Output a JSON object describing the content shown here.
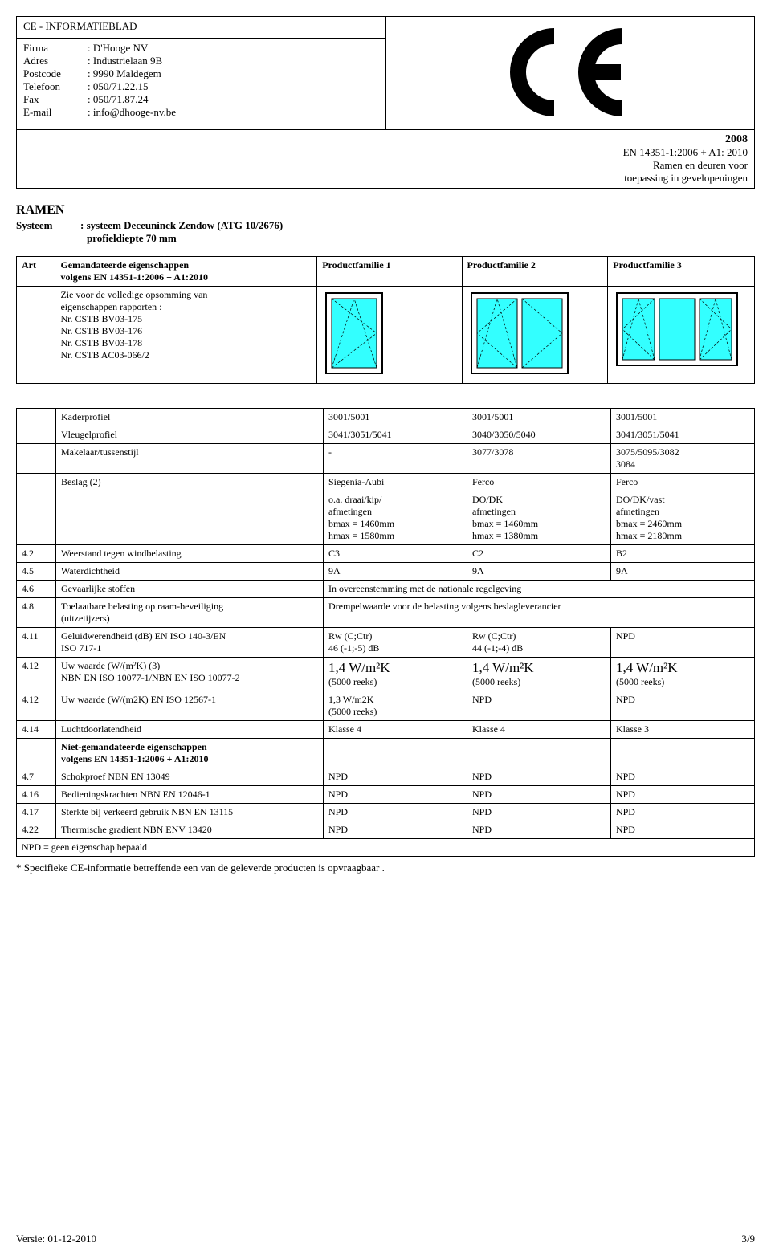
{
  "header": {
    "title": "CE - INFORMATIEBLAD",
    "firma_label": "Firma",
    "firma_value": ": D'Hooge NV",
    "adres_label": "Adres",
    "adres_value": ": Industrielaan 9B",
    "postcode_label": "Postcode",
    "postcode_value": ": 9990 Maldegem",
    "telefoon_label": "Telefoon",
    "telefoon_value": ": 050/71.22.15",
    "fax_label": "Fax",
    "fax_value": ": 050/71.87.24",
    "email_label": "E-mail",
    "email_value": ": info@dhooge-nv.be",
    "year": "2008",
    "norm_line1": "EN 14351-1:2006 + A1: 2010",
    "norm_line2": "Ramen en deuren voor",
    "norm_line3": "toepassing in gevelopeningen"
  },
  "ramen": {
    "title": "RAMEN",
    "systeem_label": "Systeem",
    "systeem_value": ": systeem Deceuninck Zendow (ATG 10/2676)",
    "systeem_value2": "profieldiepte 70 mm"
  },
  "table1": {
    "art_header": "Art",
    "desc_header": "Gemandateerde eigenschappen\nvolgens EN 14351-1:2006 + A1:2010",
    "pf1": "Productfamilie 1",
    "pf2": "Productfamilie 2",
    "pf3": "Productfamilie 3",
    "desc_body": "Zie voor de volledige opsomming van\neigenschappen rapporten :\nNr. CSTB BV03-175\nNr. CSTB BV03-176\nNr. CSTB BV03-178\nNr. CSTB AC03-066/2"
  },
  "window_colors": {
    "fill": "#33ffff",
    "stroke": "#000000"
  },
  "table2": {
    "rows": [
      {
        "art": "",
        "desc": "Kaderprofiel",
        "c1": "3001/5001",
        "c2": "3001/5001",
        "c3": "3001/5001"
      },
      {
        "art": "",
        "desc": "Vleugelprofiel",
        "c1": "3041/3051/5041",
        "c2": "3040/3050/5040",
        "c3": "3041/3051/5041"
      },
      {
        "art": "",
        "desc": "Makelaar/tussenstijl",
        "c1": "-",
        "c2": "3077/3078",
        "c3": "3075/5095/3082\n3084"
      },
      {
        "art": "",
        "desc": "Beslag (2)",
        "c1": "Siegenia-Aubi",
        "c2": "Ferco",
        "c3": "Ferco"
      },
      {
        "art": "",
        "desc": "",
        "c1": "o.a. draai/kip/\nafmetingen\nbmax = 1460mm\nhmax = 1580mm",
        "c2": "DO/DK\nafmetingen\nbmax = 1460mm\nhmax = 1380mm",
        "c3": "DO/DK/vast\nafmetingen\nbmax = 2460mm\nhmax = 2180mm"
      },
      {
        "art": "4.2",
        "desc": "Weerstand tegen windbelasting",
        "c1": "C3",
        "c2": "C2",
        "c3": "B2"
      },
      {
        "art": "4.5",
        "desc": "Waterdichtheid",
        "c1": "9A",
        "c2": "9A",
        "c3": "9A"
      },
      {
        "art": "4.6",
        "desc": "Gevaarlijke stoffen",
        "span": "In overeenstemming met de nationale regelgeving"
      },
      {
        "art": "4.8",
        "desc": "Toelaatbare belasting op raam-beveiliging\n(uitzetijzers)",
        "span": "Drempelwaarde voor de belasting volgens beslagleverancier"
      },
      {
        "art": "4.11",
        "desc": "Geluidwerendheid (dB) EN ISO 140-3/EN\nISO 717-1",
        "c1": "Rw (C;Ctr)\n46 (-1;-5) dB",
        "c2": "Rw (C;Ctr)\n44 (-1;-4) dB",
        "c3": "NPD"
      },
      {
        "art": "4.12",
        "desc": "Uw waarde (W/(m²K) (3)\nNBN EN ISO 10077-1/NBN EN ISO 10077-2",
        "c1": "1,4 W/m²K\n(5000 reeks)",
        "c2": "1,4 W/m²K\n(5000 reeks)",
        "c3": "1,4 W/m²K\n(5000 reeks)",
        "big": true
      },
      {
        "art": "4.12",
        "desc": "Uw waarde (W/(m2K) EN ISO 12567-1",
        "c1": "1,3 W/m2K\n(5000 reeks)",
        "c2": "NPD",
        "c3": "NPD"
      },
      {
        "art": "4.14",
        "desc": "Luchtdoorlatendheid",
        "c1": "Klasse 4",
        "c2": "Klasse 4",
        "c3": "Klasse 3"
      },
      {
        "art": "",
        "desc": "Niet-gemandateerde eigenschappen\nvolgens EN 14351-1:2006 + A1:2010",
        "c1": "",
        "c2": "",
        "c3": "",
        "bold": true
      },
      {
        "art": "4.7",
        "desc": "Schokproef NBN EN 13049",
        "c1": "NPD",
        "c2": "NPD",
        "c3": "NPD"
      },
      {
        "art": "4.16",
        "desc": "Bedieningskrachten NBN EN 12046-1",
        "c1": "NPD",
        "c2": "NPD",
        "c3": "NPD"
      },
      {
        "art": "4.17",
        "desc": "Sterkte bij verkeerd gebruik NBN EN 13115",
        "c1": "NPD",
        "c2": "NPD",
        "c3": "NPD"
      },
      {
        "art": "4.22",
        "desc": "Thermische gradient NBN ENV 13420",
        "c1": "NPD",
        "c2": "NPD",
        "c3": "NPD"
      }
    ],
    "npd_line": "NPD = geen eigenschap bepaald"
  },
  "footnote": "* Specifieke CE-informatie betreffende een van de geleverde producten is opvraagbaar .",
  "footer": {
    "left": "Versie: 01-12-2010",
    "right": "3/9"
  }
}
